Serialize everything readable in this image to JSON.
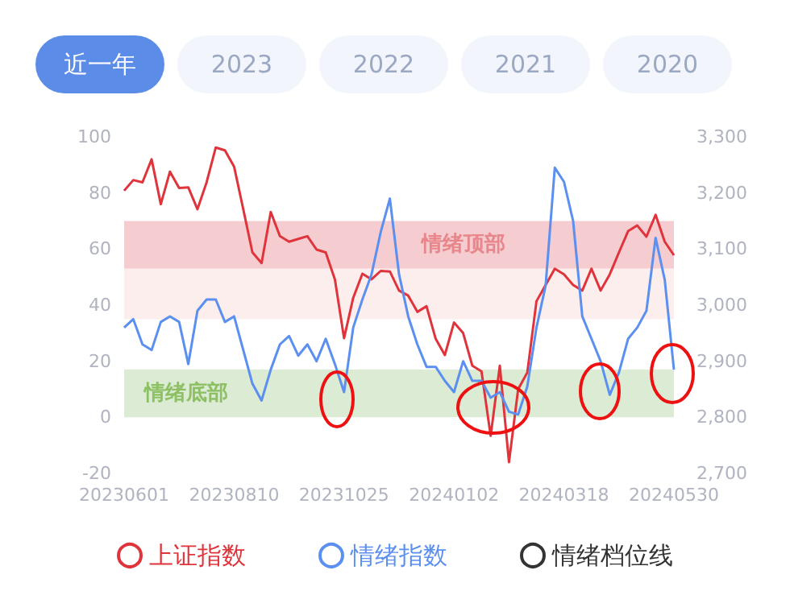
{
  "chart_data": {
    "type": "line",
    "annotations": [
      "近一年",
      "2023",
      "2022",
      "2021",
      "2020"
    ],
    "categories": [
      "20230601",
      null,
      null,
      null,
      null,
      null,
      null,
      null,
      null,
      null,
      null,
      null,
      "20230810",
      null,
      null,
      null,
      null,
      null,
      null,
      null,
      null,
      null,
      null,
      null,
      "20231025",
      null,
      null,
      null,
      null,
      null,
      null,
      null,
      null,
      null,
      null,
      null,
      "20240102",
      null,
      null,
      null,
      null,
      null,
      null,
      null,
      null,
      null,
      null,
      null,
      "20240318",
      null,
      null,
      null,
      null,
      null,
      null,
      null,
      null,
      null,
      null,
      null,
      "20240530"
    ],
    "series": [
      {
        "name": "上证指数",
        "color": "#e0343c",
        "axis": "y2",
        "values": [
          3204,
          3223,
          3219,
          3260,
          3180,
          3238,
          3209,
          3210,
          3171,
          3219,
          3281,
          3276,
          3247,
          3171,
          3094,
          3075,
          3166,
          3123,
          3113,
          3118,
          3123,
          3099,
          3094,
          3046,
          2941,
          3013,
          3056,
          3046,
          3061,
          3060,
          3026,
          3017,
          2988,
          2998,
          2940,
          2911,
          2969,
          2950,
          2892,
          2882,
          2767,
          2892,
          2720,
          2850,
          2880,
          3007,
          3036,
          3065,
          3055,
          3036,
          3026,
          3065,
          3026,
          3055,
          3094,
          3132,
          3142,
          3122,
          3161,
          3113,
          3089
        ]
      },
      {
        "name": "情绪指数",
        "color": "#5b8ff0",
        "axis": "y",
        "values": [
          32,
          35,
          26,
          24,
          34,
          36,
          34,
          19,
          38,
          42,
          42,
          34,
          36,
          24,
          12,
          6,
          17,
          26,
          29,
          22,
          26,
          20,
          28,
          19,
          9,
          32,
          42,
          51,
          66,
          78,
          51,
          36,
          26,
          18,
          18,
          13,
          9,
          20,
          13,
          13,
          7,
          9,
          2,
          1,
          11,
          32,
          47,
          89,
          84,
          70,
          36,
          28,
          20,
          8,
          16,
          28,
          32,
          38,
          64,
          49,
          17
        ]
      },
      {
        "name": "情绪档位线",
        "color": "#333333",
        "values": [
          null,
          null,
          null,
          null,
          null,
          null,
          null,
          null,
          null,
          null,
          null,
          null,
          null,
          null,
          null,
          null,
          null,
          null,
          null,
          null,
          null,
          null,
          null,
          null,
          null,
          null,
          null,
          null,
          null,
          null,
          null,
          null,
          null,
          null,
          null,
          null,
          null,
          null,
          null,
          null,
          null,
          null,
          null,
          null,
          null,
          null,
          null,
          null,
          null,
          null,
          null,
          null,
          null,
          null,
          null,
          null,
          null,
          null,
          null,
          null,
          null
        ]
      }
    ],
    "bands": [
      {
        "axis": "y",
        "from": 53,
        "to": 70,
        "label": "情绪顶部",
        "color": "#f5cdd0"
      },
      {
        "axis": "y",
        "from": 35,
        "to": 53,
        "color": "#fdeeee"
      },
      {
        "axis": "y",
        "from": 0,
        "to": 17,
        "label": "情绪底部",
        "color": "#dcebd3"
      }
    ],
    "ylim": [
      -20,
      100
    ],
    "yticks": [
      -20,
      0,
      20,
      40,
      60,
      80,
      100
    ],
    "y2lim": [
      2700,
      3300
    ],
    "y2ticks": [
      {
        "value": 2700,
        "label": "2,700"
      },
      {
        "value": 2800,
        "label": "2,800"
      },
      {
        "value": 2900,
        "label": "2,900"
      },
      {
        "value": 3000,
        "label": "3,000"
      },
      {
        "value": 3100,
        "label": "3,100"
      },
      {
        "value": 3200,
        "label": "3,200"
      },
      {
        "value": 3300,
        "label": "3,300"
      }
    ],
    "legend": "bottom",
    "marker": "none"
  }
}
